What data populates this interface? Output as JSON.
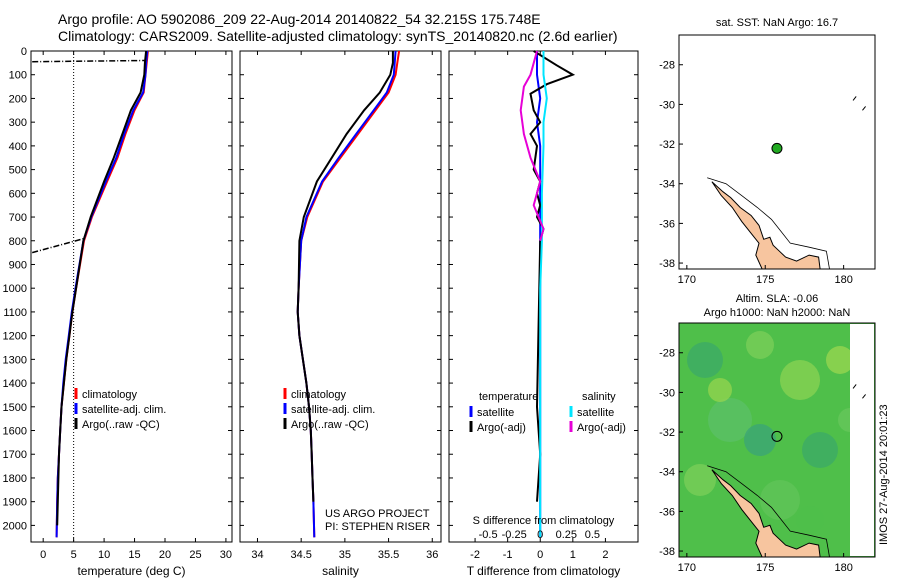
{
  "header": {
    "line1": "Argo profile: AO 5902086_209 22-Aug-2014 20140822_54 32.215S 175.748E",
    "line2": "Climatology: CARS2009. Satellite-adjusted climatology: synTS_20140820.nc (2.6d earlier)"
  },
  "credits": {
    "project": "US ARGO PROJECT",
    "pi": "PI: STEPHEN RISER"
  },
  "side_stamp": "IMOS 27-Aug-2014 20:01:23",
  "colors": {
    "climatology": "#ff0000",
    "satellite": "#0000ff",
    "argo": "#000000",
    "sal_satellite": "#00e5ff",
    "sal_argo": "#e600d6",
    "land": "#f7c59f",
    "sla_green": "#4fbf4a",
    "marker": "#22aa22"
  },
  "chart_data": [
    {
      "type": "line",
      "id": "temperature",
      "xlabel": "temperature (deg C)",
      "ylabel": "",
      "xlim": [
        -2,
        31
      ],
      "ylim": [
        2070,
        0
      ],
      "xticks": [
        0,
        5,
        10,
        15,
        20,
        25,
        30
      ],
      "yticks": [
        0,
        100,
        200,
        300,
        400,
        500,
        600,
        700,
        800,
        900,
        1000,
        1100,
        1200,
        1300,
        1400,
        1500,
        1600,
        1700,
        1800,
        1900,
        2000
      ],
      "legend": [
        "climatology",
        "satellite-adj. clim.",
        "Argo(..raw -QC)"
      ],
      "series": [
        {
          "name": "climatology",
          "x": [
            17.2,
            17.0,
            16.8,
            16.5,
            15.0,
            13.5,
            12.2,
            10.5,
            8.0,
            6.7,
            5.4,
            4.8,
            4.3,
            3.8,
            3.4,
            3.0,
            2.8,
            2.6,
            2.4,
            2.3,
            2.2
          ],
          "y": [
            0,
            50,
            100,
            175,
            250,
            350,
            450,
            550,
            700,
            800,
            1000,
            1100,
            1200,
            1300,
            1400,
            1500,
            1600,
            1700,
            1800,
            1900,
            2050
          ]
        },
        {
          "name": "satellite-adj. clim.",
          "x": [
            17.1,
            16.9,
            16.8,
            16.4,
            14.8,
            13.3,
            12.0,
            10.3,
            7.9,
            6.6,
            5.3,
            4.7,
            4.2,
            3.7,
            3.3,
            3.0,
            2.8,
            2.6,
            2.4,
            2.3,
            2.2
          ],
          "y": [
            0,
            50,
            100,
            175,
            250,
            350,
            450,
            550,
            700,
            800,
            1000,
            1100,
            1200,
            1300,
            1400,
            1500,
            1600,
            1700,
            1800,
            1900,
            2050
          ]
        },
        {
          "name": "Argo(..raw -QC)",
          "x": [
            16.9,
            16.7,
            16.6,
            16.0,
            14.4,
            13.0,
            11.6,
            10.0,
            7.8,
            6.6,
            5.4,
            4.8,
            4.3,
            3.8,
            3.4,
            3.0,
            2.8,
            2.6,
            2.5,
            2.4,
            2.3
          ],
          "y": [
            0,
            50,
            100,
            175,
            250,
            350,
            450,
            550,
            700,
            800,
            1000,
            1100,
            1200,
            1300,
            1400,
            1500,
            1600,
            1700,
            1800,
            1900,
            2000
          ]
        },
        {
          "name": "raw",
          "x": [
            -1.8,
            16.9
          ],
          "y": [
            45,
            40
          ]
        },
        {
          "name": "raw",
          "x": [
            -1.8,
            6.8
          ],
          "y": [
            850,
            790
          ]
        }
      ],
      "vline": 5
    },
    {
      "type": "line",
      "id": "salinity",
      "xlabel": "salinity",
      "ylabel": "",
      "xlim": [
        33.8,
        36.1
      ],
      "ylim": [
        2070,
        0
      ],
      "xticks": [
        34,
        34.5,
        35,
        35.5,
        36
      ],
      "xticklabels": [
        "34",
        "34.5",
        "35",
        "35.5",
        "36"
      ],
      "legend": [
        "climatology",
        "satellite-adj. clim.",
        "Argo(..raw -QC)"
      ],
      "series": [
        {
          "name": "climatology",
          "x": [
            35.62,
            35.6,
            35.58,
            35.5,
            35.35,
            35.15,
            34.95,
            34.75,
            34.57,
            34.5,
            34.47,
            34.46,
            34.48,
            34.52,
            34.56,
            34.59,
            34.61,
            34.62,
            34.63,
            34.64,
            34.65
          ],
          "y": [
            0,
            50,
            100,
            175,
            250,
            350,
            450,
            550,
            700,
            800,
            1000,
            1100,
            1200,
            1300,
            1400,
            1500,
            1600,
            1700,
            1800,
            1900,
            2050
          ]
        },
        {
          "name": "satellite-adj. clim.",
          "x": [
            35.58,
            35.57,
            35.56,
            35.48,
            35.33,
            35.13,
            34.93,
            34.74,
            34.56,
            34.5,
            34.47,
            34.46,
            34.48,
            34.52,
            34.56,
            34.59,
            34.61,
            34.62,
            34.63,
            34.64,
            34.65
          ],
          "y": [
            0,
            50,
            100,
            175,
            250,
            350,
            450,
            550,
            700,
            800,
            1000,
            1100,
            1200,
            1300,
            1400,
            1500,
            1600,
            1700,
            1800,
            1900,
            2050
          ]
        },
        {
          "name": "Argo(..raw -QC)",
          "x": [
            35.55,
            35.55,
            35.52,
            35.4,
            35.22,
            35.02,
            34.85,
            34.68,
            34.53,
            34.48,
            34.47,
            34.46,
            34.48,
            34.52,
            34.56,
            34.59,
            34.61,
            34.62,
            34.63,
            34.64
          ],
          "y": [
            0,
            50,
            100,
            175,
            250,
            350,
            450,
            550,
            700,
            800,
            1000,
            1100,
            1200,
            1300,
            1400,
            1500,
            1600,
            1700,
            1800,
            1900
          ]
        }
      ]
    },
    {
      "type": "line",
      "id": "difference",
      "xlabel": "T difference from climatology",
      "x2label": "S difference from climatology",
      "ylim": [
        2070,
        0
      ],
      "xlim": [
        -2.8,
        3.0
      ],
      "xticks": [
        -2,
        -1,
        0,
        1,
        2
      ],
      "xticklabels": [
        "-2",
        "-1",
        "0",
        "1",
        "2"
      ],
      "x2ticks": [
        -1.6,
        -0.8,
        0,
        0.8,
        1.6
      ],
      "x2ticklabels": [
        "-0.5",
        "-0.25",
        "0",
        "0.25",
        "0.5"
      ],
      "legend": [
        "temperature satellite",
        "temperature Argo(-adj)",
        "salinity satellite",
        "salinity Argo(-adj)"
      ],
      "series": [
        {
          "name": "temperature satellite",
          "x": [
            -0.1,
            -0.1,
            0,
            -0.1,
            0,
            0,
            0,
            0,
            0,
            0,
            0,
            0
          ],
          "y": [
            0,
            100,
            200,
            300,
            400,
            600,
            800,
            1000,
            1200,
            1500,
            1800,
            2050
          ]
        },
        {
          "name": "temperature Argo(-adj)",
          "x": [
            -0.2,
            0.5,
            1.0,
            0.2,
            -0.3,
            -0.2,
            0,
            -0.3,
            -0.1,
            -0.2,
            0,
            -0.1,
            0,
            -0.1,
            0.1,
            0,
            -0.1,
            0,
            -0.1
          ],
          "y": [
            0,
            60,
            100,
            140,
            180,
            250,
            300,
            350,
            400,
            500,
            550,
            600,
            650,
            700,
            750,
            800,
            1500,
            1700,
            1900
          ]
        },
        {
          "name": "salinity satellite",
          "x": [
            0.1,
            0.1,
            0.2,
            0.1,
            0.1,
            0.05,
            0.05,
            0,
            0,
            0,
            0,
            0
          ],
          "y": [
            0,
            100,
            200,
            300,
            400,
            600,
            800,
            1000,
            1200,
            1500,
            1800,
            2050
          ]
        },
        {
          "name": "salinity Argo(-adj)",
          "x": [
            -0.1,
            -0.3,
            -0.5,
            -0.6,
            -0.5,
            -0.3,
            0,
            -0.2,
            0.1,
            0
          ],
          "y": [
            0,
            100,
            150,
            250,
            350,
            450,
            550,
            650,
            750,
            800
          ]
        }
      ]
    },
    {
      "type": "map",
      "id": "sst-map",
      "title": "sat. SST: NaN  Argo: 16.7",
      "xlim": [
        169.5,
        182
      ],
      "ylim": [
        -38.3,
        -26.5
      ],
      "xticks": [
        170,
        175,
        180
      ],
      "yticks": [
        -28,
        -30,
        -32,
        -34,
        -36,
        -38
      ],
      "profile_lon": 175.748,
      "profile_lat": -32.215
    },
    {
      "type": "map",
      "id": "sla-map",
      "title_line1": "Altim. SLA: -0.06",
      "title_line2": "Argo h1000: NaN  h2000: NaN",
      "xlim": [
        169.5,
        182
      ],
      "ylim": [
        -38.3,
        -26.5
      ],
      "xticks": [
        170,
        175,
        180
      ],
      "yticks": [
        -28,
        -30,
        -32,
        -34,
        -36,
        -38
      ],
      "profile_lon": 175.748,
      "profile_lat": -32.215
    }
  ]
}
